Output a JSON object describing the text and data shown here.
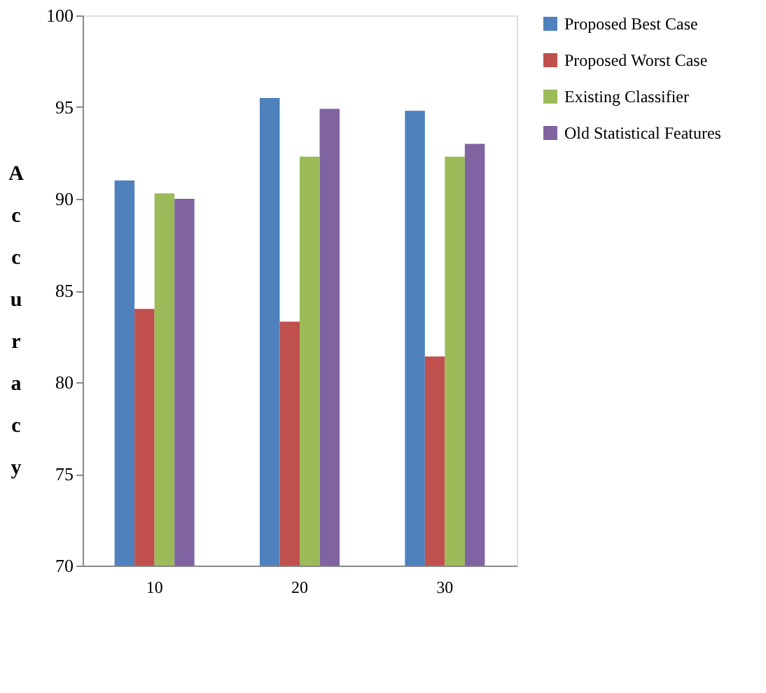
{
  "chart_data": {
    "type": "bar",
    "ylabel": "Accuracy",
    "categories": [
      "10",
      "20",
      "30"
    ],
    "series": [
      {
        "name": "Proposed Best Case",
        "color": "#4f81bd",
        "values": [
          91.0,
          95.5,
          94.8
        ]
      },
      {
        "name": "Proposed Worst Case",
        "color": "#c0504d",
        "values": [
          84.0,
          83.3,
          81.4
        ]
      },
      {
        "name": "Existing Classifier",
        "color": "#9bbb59",
        "values": [
          90.3,
          92.3,
          92.3
        ]
      },
      {
        "name": "Old Statistical Features",
        "color": "#8064a2",
        "values": [
          90.0,
          94.9,
          93.0
        ]
      }
    ],
    "ylim": [
      70,
      100
    ],
    "yticks": [
      70,
      75,
      80,
      85,
      90,
      95,
      100
    ],
    "grid": false,
    "legend": "right"
  }
}
